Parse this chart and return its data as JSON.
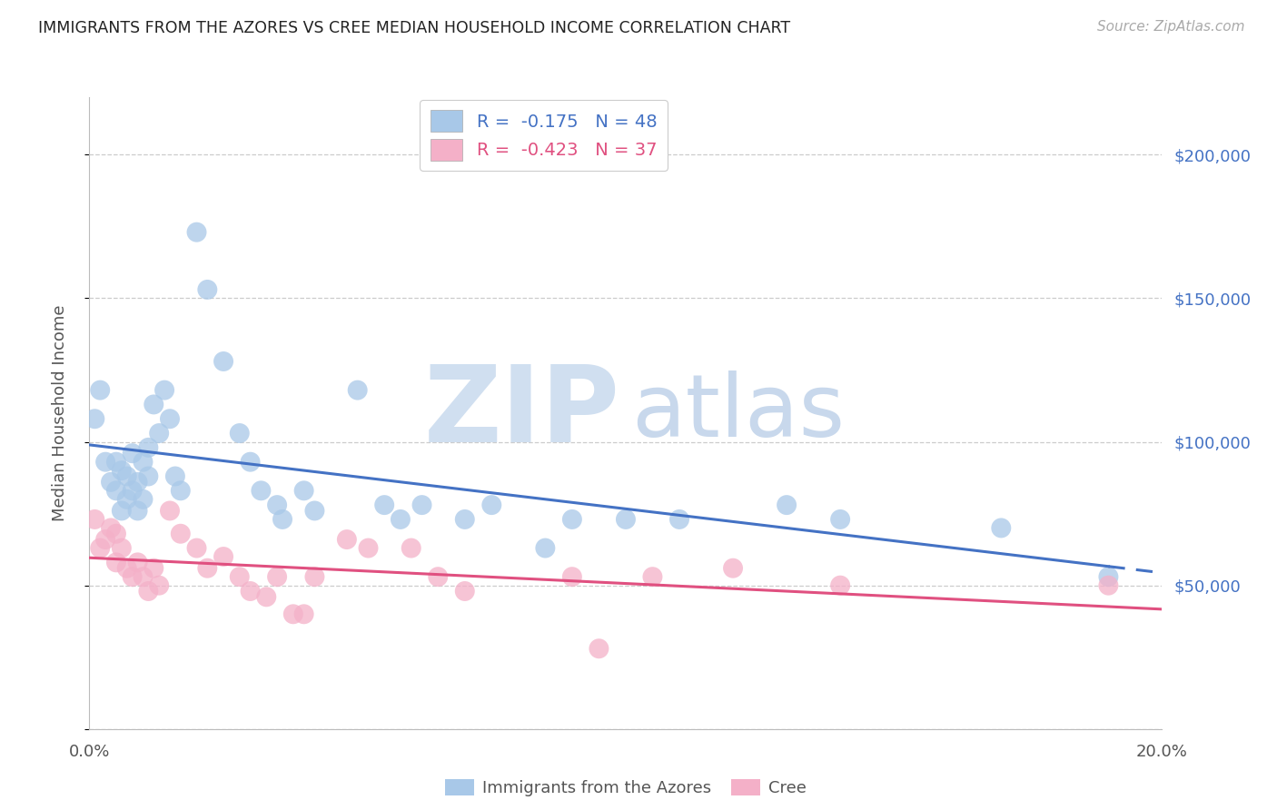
{
  "title": "IMMIGRANTS FROM THE AZORES VS CREE MEDIAN HOUSEHOLD INCOME CORRELATION CHART",
  "source": "Source: ZipAtlas.com",
  "ylabel": "Median Household Income",
  "xlim": [
    0.0,
    0.2
  ],
  "ylim": [
    0,
    220000
  ],
  "yticks": [
    0,
    50000,
    100000,
    150000,
    200000
  ],
  "ytick_labels_right": [
    "",
    "$50,000",
    "$100,000",
    "$150,000",
    "$200,000"
  ],
  "xtick_positions": [
    0.0,
    0.05,
    0.1,
    0.15,
    0.2
  ],
  "xtick_labels": [
    "0.0%",
    "",
    "",
    "",
    "20.0%"
  ],
  "legend1_text": "R =  -0.175   N = 48",
  "legend2_text": "R =  -0.423   N = 37",
  "legend_label1": "Immigrants from the Azores",
  "legend_label2": "Cree",
  "blue_color": "#a8c8e8",
  "pink_color": "#f4b0c8",
  "blue_line_color": "#4472c4",
  "pink_line_color": "#e05080",
  "right_tick_color": "#4472c4",
  "watermark_ZIP_color": "#d0dff0",
  "watermark_atlas_color": "#c8d8ec",
  "blue_x": [
    0.001,
    0.002,
    0.003,
    0.004,
    0.005,
    0.005,
    0.006,
    0.006,
    0.007,
    0.007,
    0.008,
    0.008,
    0.009,
    0.009,
    0.01,
    0.01,
    0.011,
    0.011,
    0.012,
    0.013,
    0.014,
    0.015,
    0.016,
    0.017,
    0.02,
    0.022,
    0.025,
    0.028,
    0.03,
    0.032,
    0.035,
    0.036,
    0.04,
    0.042,
    0.05,
    0.055,
    0.058,
    0.062,
    0.07,
    0.075,
    0.085,
    0.09,
    0.1,
    0.11,
    0.13,
    0.14,
    0.17,
    0.19
  ],
  "blue_y": [
    108000,
    118000,
    93000,
    86000,
    93000,
    83000,
    90000,
    76000,
    88000,
    80000,
    96000,
    83000,
    86000,
    76000,
    93000,
    80000,
    98000,
    88000,
    113000,
    103000,
    118000,
    108000,
    88000,
    83000,
    173000,
    153000,
    128000,
    103000,
    93000,
    83000,
    78000,
    73000,
    83000,
    76000,
    118000,
    78000,
    73000,
    78000,
    73000,
    78000,
    63000,
    73000,
    73000,
    73000,
    78000,
    73000,
    70000,
    53000
  ],
  "pink_x": [
    0.001,
    0.002,
    0.003,
    0.004,
    0.005,
    0.005,
    0.006,
    0.007,
    0.008,
    0.009,
    0.01,
    0.011,
    0.012,
    0.013,
    0.015,
    0.017,
    0.02,
    0.022,
    0.025,
    0.028,
    0.03,
    0.033,
    0.035,
    0.038,
    0.04,
    0.042,
    0.048,
    0.052,
    0.06,
    0.065,
    0.07,
    0.09,
    0.095,
    0.105,
    0.12,
    0.14,
    0.19
  ],
  "pink_y": [
    73000,
    63000,
    66000,
    70000,
    68000,
    58000,
    63000,
    56000,
    53000,
    58000,
    53000,
    48000,
    56000,
    50000,
    76000,
    68000,
    63000,
    56000,
    60000,
    53000,
    48000,
    46000,
    53000,
    40000,
    40000,
    53000,
    66000,
    63000,
    63000,
    53000,
    48000,
    53000,
    28000,
    53000,
    56000,
    50000,
    50000
  ]
}
